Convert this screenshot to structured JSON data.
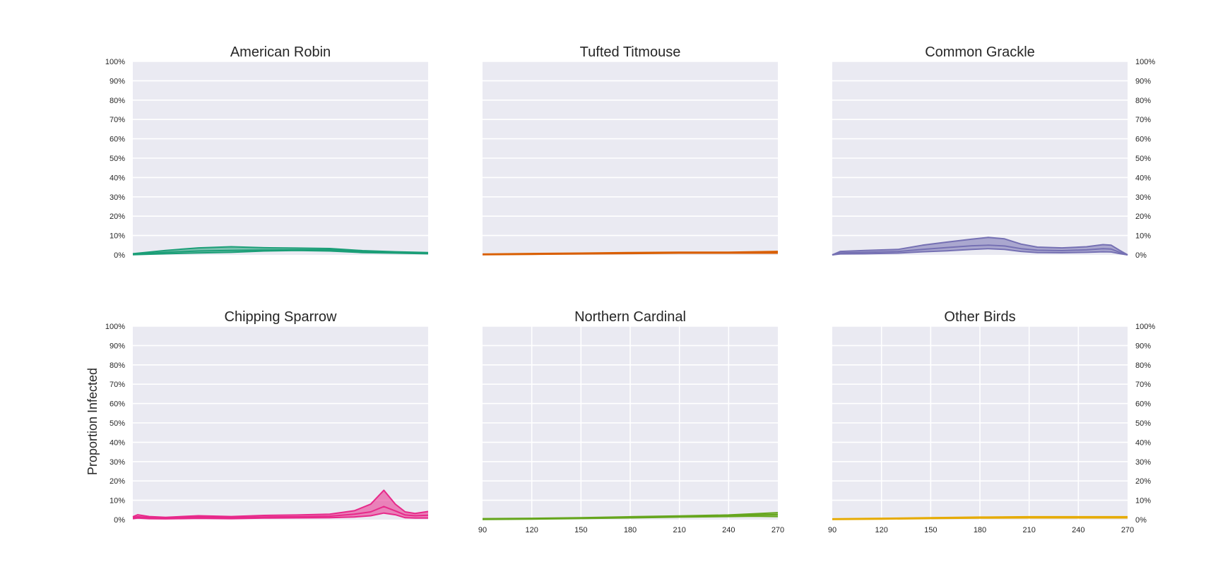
{
  "figure": {
    "ylabel": "Proportion Infected",
    "x_ticks": [
      "90",
      "120",
      "150",
      "180",
      "210",
      "240",
      "270"
    ],
    "y_ticks": [
      "0%",
      "10%",
      "20%",
      "30%",
      "40%",
      "50%",
      "60%",
      "70%",
      "80%",
      "90%",
      "100%"
    ]
  },
  "chart_data": [
    {
      "type": "area",
      "title": "American Robin",
      "color": "#1b9e77",
      "xlim": [
        90,
        270
      ],
      "ylim": [
        0,
        100
      ],
      "x": [
        90,
        110,
        130,
        150,
        170,
        190,
        210,
        230,
        250,
        270
      ],
      "series": [
        {
          "values": [
            0.3,
            1.3,
            2.0,
            2.3,
            2.5,
            2.6,
            2.6,
            1.8,
            1.2,
            0.8
          ]
        },
        {
          "values": [
            0.6,
            2.3,
            3.6,
            4.2,
            3.7,
            3.5,
            3.3,
            2.2,
            1.6,
            1.2
          ]
        },
        {
          "values": [
            0.1,
            0.6,
            1.0,
            1.3,
            2.0,
            2.3,
            2.0,
            1.2,
            0.9,
            0.6
          ]
        }
      ]
    },
    {
      "type": "area",
      "title": "Tufted Titmouse",
      "color": "#d95f02",
      "xlim": [
        90,
        270
      ],
      "ylim": [
        0,
        100
      ],
      "x": [
        90,
        120,
        150,
        180,
        210,
        240,
        270
      ],
      "series": [
        {
          "values": [
            0.2,
            0.5,
            0.7,
            0.9,
            1.1,
            1.1,
            1.3
          ]
        },
        {
          "values": [
            0.4,
            0.7,
            0.9,
            1.2,
            1.4,
            1.4,
            1.8
          ]
        },
        {
          "values": [
            0.1,
            0.3,
            0.5,
            0.7,
            0.9,
            0.9,
            0.9
          ]
        }
      ]
    },
    {
      "type": "area",
      "title": "Common Grackle",
      "color": "#7570b3",
      "xlim": [
        90,
        270
      ],
      "ylim": [
        0,
        100
      ],
      "x": [
        90,
        95,
        110,
        130,
        145,
        160,
        175,
        185,
        195,
        205,
        215,
        230,
        245,
        255,
        260,
        265,
        270
      ],
      "series": [
        {
          "values": [
            0,
            1.0,
            1.3,
            1.7,
            2.8,
            3.8,
            4.7,
            5.0,
            4.6,
            3.2,
            2.4,
            2.2,
            2.6,
            3.2,
            3.0,
            1.4,
            0
          ]
        },
        {
          "values": [
            0,
            1.8,
            2.3,
            2.8,
            5.0,
            6.6,
            8.1,
            9.0,
            8.3,
            5.6,
            4.0,
            3.6,
            4.2,
            5.3,
            5.0,
            2.4,
            0
          ]
        },
        {
          "values": [
            0,
            0.5,
            0.6,
            0.9,
            1.6,
            2.1,
            2.8,
            3.2,
            2.8,
            1.8,
            1.2,
            1.1,
            1.3,
            1.6,
            1.5,
            0.7,
            0
          ]
        }
      ]
    },
    {
      "type": "area",
      "title": "Chipping Sparrow",
      "color": "#e7298a",
      "xlim": [
        90,
        270
      ],
      "ylim": [
        0,
        100
      ],
      "x": [
        90,
        93,
        100,
        110,
        130,
        150,
        170,
        190,
        210,
        225,
        235,
        243,
        250,
        256,
        262,
        270
      ],
      "series": [
        {
          "values": [
            1.0,
            1.5,
            1.0,
            0.8,
            1.3,
            1.0,
            1.4,
            1.5,
            1.8,
            2.8,
            4.0,
            6.8,
            4.5,
            2.4,
            2.0,
            2.3
          ]
        },
        {
          "values": [
            1.5,
            2.5,
            1.6,
            1.2,
            2.0,
            1.6,
            2.2,
            2.4,
            2.8,
            4.6,
            8.0,
            15.2,
            8.0,
            4.0,
            3.2,
            4.2
          ]
        },
        {
          "values": [
            0.5,
            0.8,
            0.5,
            0.4,
            0.7,
            0.5,
            0.8,
            0.9,
            1.0,
            1.4,
            2.0,
            3.4,
            2.5,
            1.0,
            0.8,
            0.8
          ]
        }
      ]
    },
    {
      "type": "area",
      "title": "Northern Cardinal",
      "color": "#66a61e",
      "xlim": [
        90,
        270
      ],
      "ylim": [
        0,
        100
      ],
      "x": [
        90,
        120,
        150,
        180,
        210,
        240,
        255,
        270
      ],
      "series": [
        {
          "values": [
            0.3,
            0.5,
            0.8,
            1.2,
            1.6,
            2.0,
            2.4,
            2.6
          ]
        },
        {
          "values": [
            0.5,
            0.7,
            1.0,
            1.5,
            1.9,
            2.4,
            3.0,
            3.6
          ]
        },
        {
          "values": [
            0.1,
            0.3,
            0.6,
            0.9,
            1.3,
            1.6,
            1.8,
            1.6
          ]
        }
      ]
    },
    {
      "type": "area",
      "title": "Other Birds",
      "color": "#e6ab02",
      "xlim": [
        90,
        270
      ],
      "ylim": [
        0,
        100
      ],
      "x": [
        90,
        120,
        150,
        180,
        210,
        240,
        270
      ],
      "series": [
        {
          "values": [
            0.2,
            0.5,
            0.8,
            1.0,
            1.2,
            1.2,
            1.2
          ]
        },
        {
          "values": [
            0.4,
            0.7,
            1.0,
            1.3,
            1.5,
            1.5,
            1.5
          ]
        },
        {
          "values": [
            0.1,
            0.3,
            0.6,
            0.8,
            0.9,
            0.9,
            0.9
          ]
        }
      ]
    }
  ]
}
